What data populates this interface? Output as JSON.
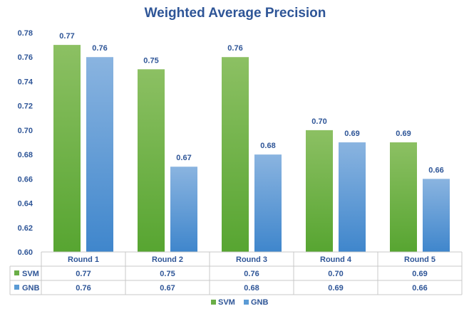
{
  "chart_data": {
    "type": "bar",
    "title": "Weighted Average Precision",
    "xlabel": "",
    "ylabel": "",
    "categories": [
      "Round 1",
      "Round 2",
      "Round 3",
      "Round 4",
      "Round 5"
    ],
    "series": [
      {
        "name": "SVM",
        "values": [
          0.77,
          0.75,
          0.76,
          0.7,
          0.69
        ],
        "display": [
          "0.77",
          "0.75",
          "0.76",
          "0.70",
          "0.69"
        ],
        "color": "#6aae47"
      },
      {
        "name": "GNB",
        "values": [
          0.76,
          0.67,
          0.68,
          0.69,
          0.66
        ],
        "display": [
          "0.76",
          "0.67",
          "0.68",
          "0.69",
          "0.66"
        ],
        "color": "#5b9bd5"
      }
    ],
    "ylim": [
      0.6,
      0.78
    ],
    "yticks": [
      "0.60",
      "0.62",
      "0.64",
      "0.66",
      "0.68",
      "0.70",
      "0.72",
      "0.74",
      "0.76",
      "0.78"
    ],
    "data_table": true,
    "legend_position": "bottom",
    "grid": false,
    "title_color": "#2e5597",
    "label_color": "#2e5597"
  }
}
